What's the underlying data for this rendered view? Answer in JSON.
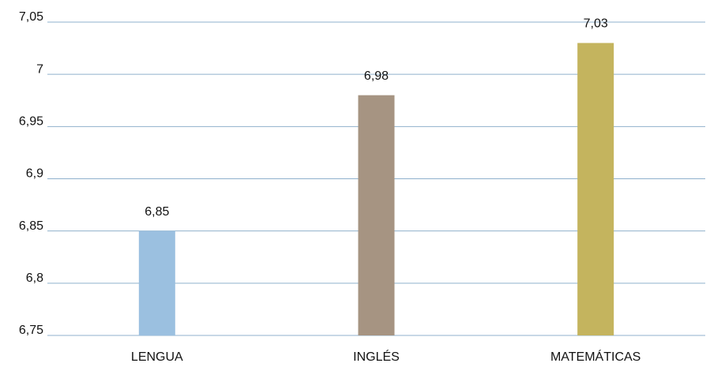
{
  "chart_data": {
    "type": "bar",
    "categories": [
      "LENGUA",
      "INGLÉS",
      "MATEMÁTICAS"
    ],
    "values": [
      6.85,
      6.98,
      7.03
    ],
    "value_labels": [
      "6,85",
      "6,98",
      "7,03"
    ],
    "colors": [
      "#9bc0e0",
      "#a69482",
      "#c4b45e"
    ],
    "ylim": [
      6.75,
      7.05
    ],
    "yticks": [
      {
        "value": 6.75,
        "label": "6,75"
      },
      {
        "value": 6.8,
        "label": "6,8"
      },
      {
        "value": 6.85,
        "label": "6,85"
      },
      {
        "value": 6.9,
        "label": "6,9"
      },
      {
        "value": 6.95,
        "label": "6,95"
      },
      7,
      {
        "value": 7.05,
        "label": "7,05"
      }
    ],
    "grid": true
  }
}
